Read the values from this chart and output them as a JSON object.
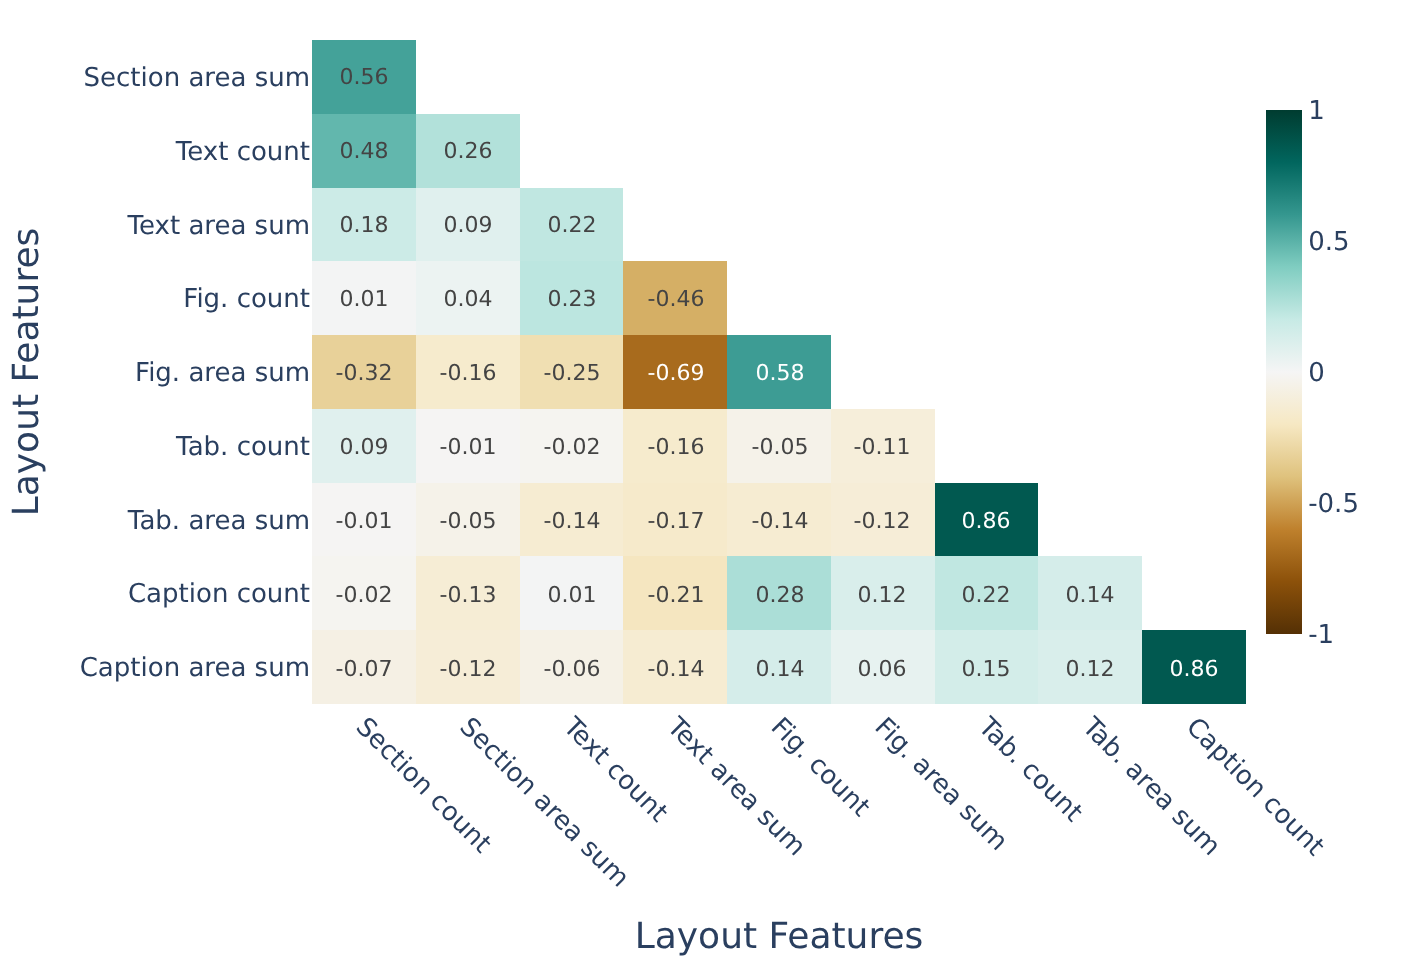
{
  "chart_data": {
    "type": "heatmap",
    "xlabel": "Layout Features",
    "ylabel": "Layout Features",
    "categories": [
      "Section count",
      "Section area sum",
      "Text count",
      "Text area sum",
      "Fig. count",
      "Fig. area sum",
      "Tab. count",
      "Tab. area sum",
      "Caption count"
    ],
    "y_categories": [
      "Section area sum",
      "Text count",
      "Text area sum",
      "Fig. count",
      "Fig. area sum",
      "Tab. count",
      "Tab. area sum",
      "Caption count",
      "Caption area sum"
    ],
    "cells": [
      [
        0.56,
        null,
        null,
        null,
        null,
        null,
        null,
        null,
        null
      ],
      [
        0.48,
        0.26,
        null,
        null,
        null,
        null,
        null,
        null,
        null
      ],
      [
        0.18,
        0.09,
        0.22,
        null,
        null,
        null,
        null,
        null,
        null
      ],
      [
        0.01,
        0.04,
        0.23,
        -0.46,
        null,
        null,
        null,
        null,
        null
      ],
      [
        -0.32,
        -0.16,
        -0.25,
        -0.69,
        0.58,
        null,
        null,
        null,
        null
      ],
      [
        0.09,
        -0.01,
        -0.02,
        -0.16,
        -0.05,
        -0.11,
        null,
        null,
        null
      ],
      [
        -0.01,
        -0.05,
        -0.14,
        -0.17,
        -0.14,
        -0.12,
        0.86,
        null,
        null
      ],
      [
        -0.02,
        -0.13,
        0.01,
        -0.21,
        0.28,
        0.12,
        0.22,
        0.14,
        null
      ],
      [
        -0.07,
        -0.12,
        -0.06,
        -0.14,
        0.14,
        0.06,
        0.15,
        0.12,
        0.86
      ]
    ],
    "clim": [
      -1,
      1
    ],
    "cticks": [
      -1,
      -0.5,
      0,
      0.5,
      1
    ],
    "data_labels": true
  }
}
